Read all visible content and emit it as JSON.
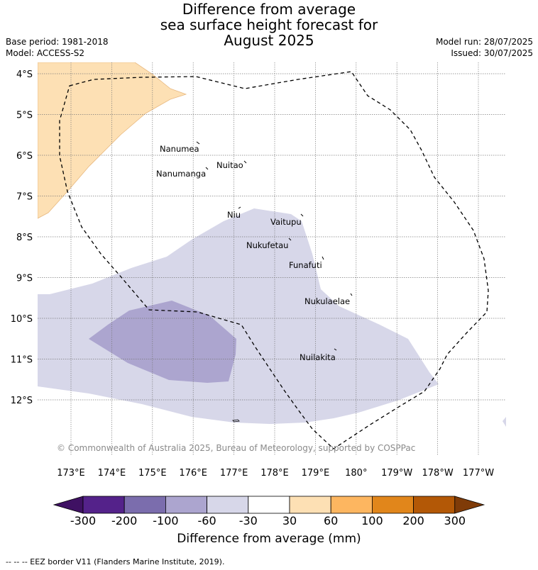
{
  "title": {
    "line1": "Difference from average",
    "line2": "sea surface height forecast for",
    "line3": "August 2025"
  },
  "meta": {
    "base_period": "Base period: 1981-2018",
    "model": "Model: ACCESS-S2",
    "model_run": "Model run: 28/07/2025",
    "issued": "Issued: 30/07/2025"
  },
  "map": {
    "lat_labels": [
      "4°S",
      "5°S",
      "6°S",
      "7°S",
      "8°S",
      "9°S",
      "10°S",
      "11°S",
      "12°S"
    ],
    "lon_labels": [
      "173°E",
      "174°E",
      "175°E",
      "176°E",
      "177°E",
      "178°E",
      "179°E",
      "180°",
      "179°W",
      "178°W",
      "177°W"
    ],
    "islands": [
      {
        "name": "Nanumea"
      },
      {
        "name": "Nuitao"
      },
      {
        "name": "Nanumanga"
      },
      {
        "name": "Niu"
      },
      {
        "name": "Vaitupu"
      },
      {
        "name": "Nukufetau"
      },
      {
        "name": "Funafuti"
      },
      {
        "name": "Nukulaelae"
      },
      {
        "name": "Nuilakita"
      }
    ],
    "copyright": "© Commonwealth of Australia 2025, Bureau of Meteorology, supported by COSPPac"
  },
  "colorbar": {
    "colors": [
      "#3f1163",
      "#54228a",
      "#7b6dad",
      "#aca5cf",
      "#d7d7e9",
      "#ffffff",
      "#fde0b4",
      "#fdb660",
      "#e1861b",
      "#b35806",
      "#7f3b08"
    ],
    "ticks": [
      "-300",
      "-200",
      "-100",
      "-60",
      "-30",
      "30",
      "60",
      "100",
      "200",
      "300"
    ],
    "title": "Difference from average (mm)"
  },
  "footer": "-- -- -- EEZ border V11 (Flanders Marine Institute, 2019)."
}
